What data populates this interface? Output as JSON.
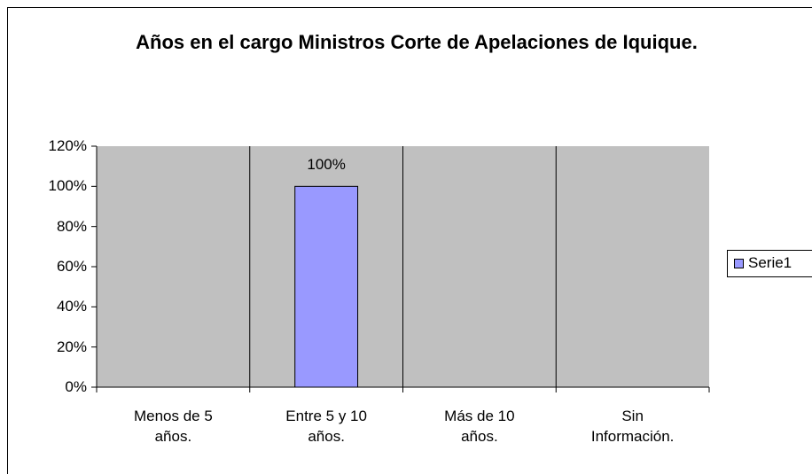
{
  "chart_data": {
    "type": "bar",
    "title": "Años en el cargo Ministros Corte de Apelaciones de Iquique.",
    "categories": [
      "Menos de 5 años.",
      "Entre 5 y 10 años.",
      "Más de 10 años.",
      "Sin Información."
    ],
    "series": [
      {
        "name": "Serie1",
        "color": "#9999ff",
        "values": [
          0,
          100,
          0,
          0
        ],
        "value_labels": [
          null,
          "100%",
          null,
          null
        ]
      }
    ],
    "ylim": [
      0,
      120
    ],
    "yticks": [
      {
        "value": 0,
        "label": "0%"
      },
      {
        "value": 20,
        "label": "20%"
      },
      {
        "value": 40,
        "label": "40%"
      },
      {
        "value": 60,
        "label": "60%"
      },
      {
        "value": 80,
        "label": "80%"
      },
      {
        "value": 100,
        "label": "100%"
      },
      {
        "value": 120,
        "label": "120%"
      }
    ],
    "plot_background": "#c0c0c0",
    "legend": "right"
  }
}
